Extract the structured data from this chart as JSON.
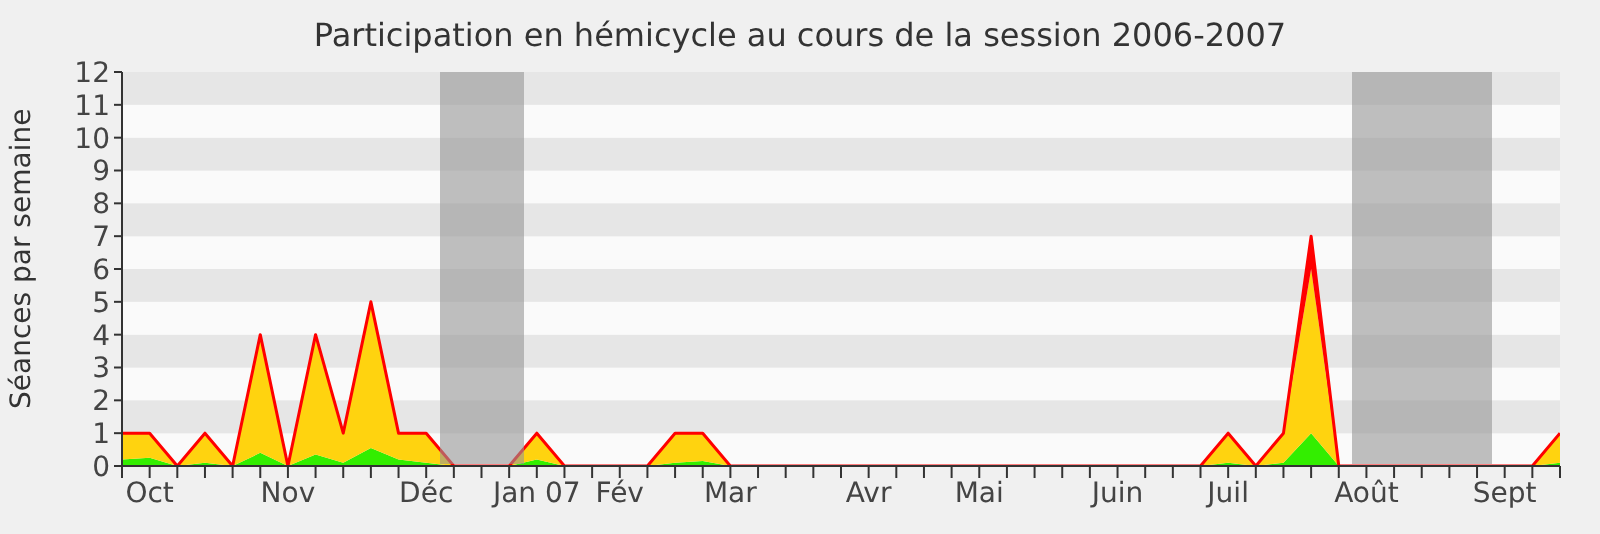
{
  "chart_data": {
    "type": "area",
    "title": "Participation en hémicycle au cours de la session 2006-2007",
    "ylabel": "Séances par semaine",
    "stacked": true,
    "ylim": [
      0,
      12
    ],
    "yticks": [
      0,
      1,
      2,
      3,
      4,
      5,
      6,
      7,
      8,
      9,
      10,
      11,
      12
    ],
    "categories": [
      null,
      "Oct",
      null,
      null,
      null,
      null,
      "Nov",
      null,
      null,
      null,
      null,
      "Déc",
      null,
      null,
      null,
      "Jan 07",
      null,
      null,
      "Fév",
      null,
      null,
      null,
      "Mar",
      null,
      null,
      null,
      null,
      "Avr",
      null,
      null,
      null,
      "Mai",
      null,
      null,
      null,
      null,
      "Juin",
      null,
      null,
      null,
      "Juil",
      null,
      null,
      null,
      null,
      "Août",
      null,
      null,
      null,
      null,
      "Sept",
      null,
      null
    ],
    "series": [
      {
        "color": "#33ee00",
        "values": [
          0.2,
          0.25,
          0,
          0.1,
          0,
          0.4,
          0,
          0.35,
          0.1,
          0.55,
          0.2,
          0.1,
          0,
          0,
          0,
          0.2,
          0,
          0,
          0,
          0,
          0.1,
          0.15,
          0,
          0,
          0,
          0,
          0,
          0,
          0,
          0,
          0,
          0,
          0,
          0,
          0,
          0,
          0,
          0,
          0,
          0,
          0.1,
          0,
          0.1,
          1,
          0,
          0,
          0,
          0,
          0,
          0,
          0,
          0,
          0.1
        ]
      },
      {
        "color": "#ffd30f",
        "values": [
          0.8,
          0.75,
          0,
          0.9,
          0,
          3.6,
          0,
          3.65,
          0.9,
          4.45,
          0.8,
          0.9,
          0,
          0,
          0,
          0.8,
          0,
          0,
          0,
          0,
          0.9,
          0.85,
          0,
          0,
          0,
          0,
          0,
          0,
          0,
          0,
          0,
          0,
          0,
          0,
          0,
          0,
          0,
          0,
          0,
          0,
          0.9,
          0,
          0.9,
          5,
          0,
          0,
          0,
          0,
          0,
          0,
          0,
          0,
          0.9
        ]
      },
      {
        "color": "#ff0000",
        "values": [
          0,
          0,
          0,
          0,
          0,
          0,
          0,
          0,
          0,
          0,
          0,
          0,
          0,
          0,
          0,
          0,
          0,
          0,
          0,
          0,
          0,
          0,
          0,
          0,
          0,
          0,
          0,
          0,
          0,
          0,
          0,
          0,
          0,
          0,
          0,
          0,
          0,
          0,
          0,
          0,
          0,
          0,
          0,
          1,
          0,
          0,
          0,
          0,
          0,
          0,
          0,
          0,
          0
        ]
      }
    ]
  }
}
